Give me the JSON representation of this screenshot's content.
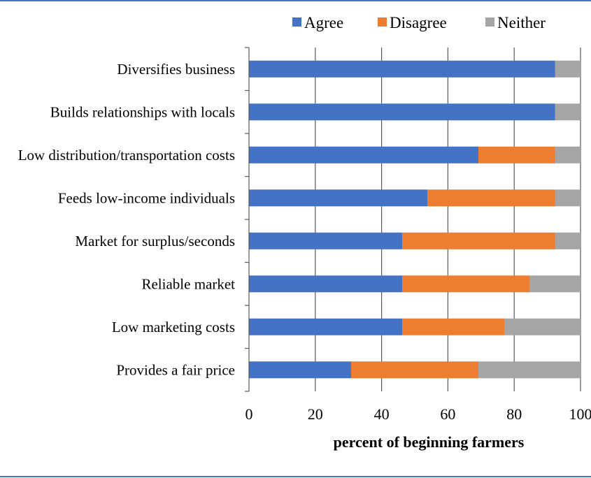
{
  "chart_data": {
    "type": "bar",
    "orientation": "horizontal",
    "stacked": true,
    "categories": [
      "Diversifies business",
      "Builds relationships with locals",
      "Low distribution/transportation costs",
      "Feeds low-income individuals",
      "Market for surplus/seconds",
      "Reliable market",
      "Low marketing costs",
      "Provides a fair price"
    ],
    "series": [
      {
        "name": "Agree",
        "color": "#4472c4",
        "values": [
          92.3,
          92.3,
          69.2,
          53.8,
          46.2,
          46.2,
          46.2,
          30.8
        ]
      },
      {
        "name": "Disagree",
        "color": "#ed7d31",
        "values": [
          0,
          0,
          23.1,
          38.5,
          46.1,
          38.4,
          30.8,
          38.4
        ]
      },
      {
        "name": "Neither",
        "color": "#a5a5a5",
        "values": [
          7.7,
          7.7,
          7.7,
          7.7,
          7.7,
          15.4,
          23.0,
          30.8
        ]
      }
    ],
    "xlabel": "percent of beginning farmers",
    "ylabel": "",
    "xlim": [
      0,
      100
    ],
    "xticks": [
      "0",
      "20",
      "40",
      "60",
      "80",
      "100"
    ],
    "grid": true,
    "legend_position": "top"
  }
}
